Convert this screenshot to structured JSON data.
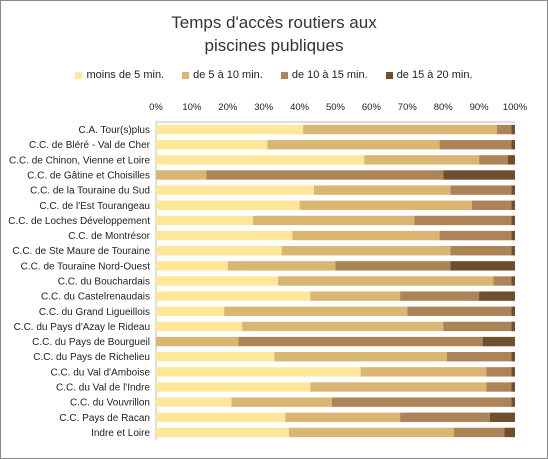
{
  "chart_data": {
    "type": "bar",
    "orientation": "horizontal",
    "stacked": true,
    "percent_stacked": true,
    "title": [
      "Temps d'accès routiers aux",
      "piscines publiques"
    ],
    "legend_position": "top",
    "xlim": [
      0,
      100
    ],
    "x_ticks": [
      "0%",
      "10%",
      "20%",
      "30%",
      "40%",
      "50%",
      "60%",
      "70%",
      "80%",
      "90%",
      "100%"
    ],
    "grid": false,
    "categories": [
      "C.A. Tour(s)plus",
      "C.C. de Bléré - Val de Cher",
      "C.C. de Chinon, Vienne et Loire",
      "C.C. de Gâtine et Choisilles",
      "C.C. de la Touraine du Sud",
      "C.C. de l'Est Tourangeau",
      "C.C. de Loches Développement",
      "C.C. de Montrésor",
      "C.C. de Ste Maure de Touraine",
      "C.C. de Touraine Nord-Ouest",
      "C.C. du Bouchardais",
      "C.C. du Castelrenaudais",
      "C.C. du Grand Ligueillois",
      "C.C. du Pays d'Azay le Rideau",
      "C.C. du Pays de Bourgueil",
      "C.C. du Pays de Richelieu",
      "C.C. du Val d'Amboise",
      "C.C. du Val de l'Indre",
      "C.C. du Vouvrillon",
      "C.C. Pays de Racan",
      "Indre et Loire"
    ],
    "series": [
      {
        "name": "moins de 5 min.",
        "color": "#ffe79a",
        "values": [
          41,
          31,
          58,
          0,
          44,
          40,
          27,
          38,
          35,
          20,
          34,
          43,
          19,
          24,
          0,
          33,
          57,
          43,
          21,
          36,
          37
        ]
      },
      {
        "name": "de 5 à 10 min.",
        "color": "#d9b671",
        "values": [
          54,
          48,
          32,
          14,
          38,
          48,
          45,
          41,
          47,
          30,
          60,
          25,
          51,
          56,
          23,
          48,
          35,
          49,
          28,
          32,
          46
        ]
      },
      {
        "name": "de 10 à 15 min.",
        "color": "#ad8457",
        "values": [
          4,
          20,
          8,
          66,
          17,
          11,
          27,
          20,
          17,
          32,
          5,
          22,
          29,
          19,
          68,
          18,
          7,
          7,
          50,
          25,
          14
        ]
      },
      {
        "name": "de 15 à 20 min.",
        "color": "#6d4f30",
        "values": [
          1,
          1,
          2,
          20,
          1,
          1,
          1,
          1,
          1,
          18,
          1,
          10,
          1,
          1,
          9,
          1,
          1,
          1,
          1,
          7,
          3
        ]
      }
    ]
  }
}
